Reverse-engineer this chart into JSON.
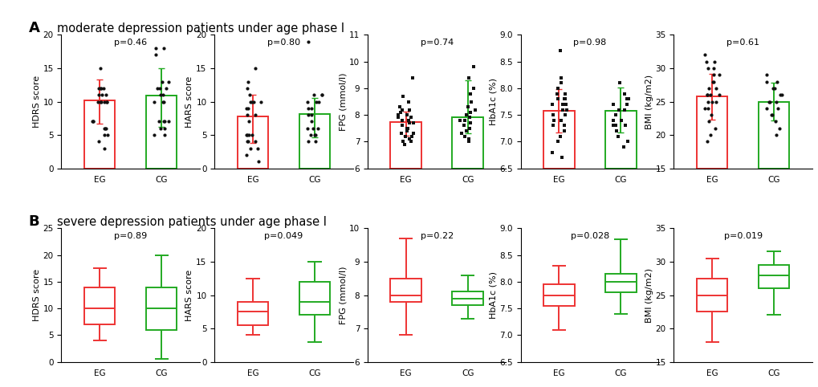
{
  "title_A": "moderate depression patients under age phase I",
  "title_B": "severe depression patients under age phase I",
  "label_A": "A",
  "label_B": "B",
  "groups": [
    "EG",
    "CG"
  ],
  "eg_color": "#EE3333",
  "cg_color": "#22AA22",
  "dot_color": "#111111",
  "row_A": {
    "panels": [
      {
        "ylabel": "HDRS score",
        "pval": "p=0.46",
        "ylim": [
          0,
          20
        ],
        "yticks": [
          0,
          5,
          10,
          15,
          20
        ],
        "marker": "o",
        "EG": {
          "mean": 10.2,
          "sd_low": 6.7,
          "sd_high": 13.3,
          "dots": [
            15,
            12,
            12,
            12,
            12,
            11,
            11,
            11,
            10,
            10,
            10,
            10,
            10,
            10,
            7,
            7,
            7,
            6,
            6,
            6,
            5,
            5,
            4,
            3
          ]
        },
        "CG": {
          "mean": 10.9,
          "sd_low": 6.2,
          "sd_high": 15.0,
          "dots": [
            18,
            18,
            17,
            13,
            13,
            12,
            12,
            12,
            11,
            11,
            10,
            10,
            10,
            7,
            7,
            7,
            7,
            6,
            6,
            5,
            5
          ]
        }
      },
      {
        "ylabel": "HARS score",
        "pval": "p=0.80",
        "ylim": [
          0,
          20
        ],
        "yticks": [
          0,
          5,
          10,
          15,
          20
        ],
        "marker": "o",
        "EG": {
          "mean": 7.8,
          "sd_low": 3.8,
          "sd_high": 11.0,
          "dots": [
            15,
            13,
            12,
            11,
            10,
            10,
            10,
            10,
            9,
            9,
            8,
            8,
            7,
            5,
            5,
            5,
            5,
            4,
            4,
            4,
            3,
            3,
            2,
            1
          ]
        },
        "CG": {
          "mean": 8.1,
          "sd_low": 4.6,
          "sd_high": 10.5,
          "dots": [
            19,
            11,
            11,
            11,
            10,
            10,
            10,
            9,
            9,
            8,
            8,
            7,
            6,
            6,
            6,
            5,
            5,
            5,
            4,
            4
          ]
        }
      },
      {
        "ylabel": "FPG (mmol/l)",
        "pval": "p=0.74",
        "ylim": [
          6,
          11
        ],
        "yticks": [
          6,
          7,
          8,
          9,
          10,
          11
        ],
        "marker": "s",
        "EG": {
          "mean": 7.72,
          "sd_low": 7.22,
          "sd_high": 8.12,
          "dots": [
            9.4,
            8.7,
            8.5,
            8.3,
            8.2,
            8.2,
            8.1,
            8.0,
            8.0,
            7.9,
            7.9,
            7.8,
            7.8,
            7.7,
            7.7,
            7.6,
            7.5,
            7.5,
            7.4,
            7.3,
            7.3,
            7.2,
            7.2,
            7.1,
            7.0,
            7.0,
            6.9
          ]
        },
        "CG": {
          "mean": 7.9,
          "sd_low": 7.3,
          "sd_high": 9.3,
          "dots": [
            9.8,
            9.4,
            9.0,
            8.8,
            8.5,
            8.3,
            8.2,
            8.1,
            8.0,
            7.9,
            7.8,
            7.8,
            7.7,
            7.6,
            7.5,
            7.4,
            7.3,
            7.2,
            7.1,
            7.0
          ]
        }
      },
      {
        "ylabel": "HbA1c (%)",
        "pval": "p=0.98",
        "ylim": [
          6.5,
          9.0
        ],
        "yticks": [
          6.5,
          7.0,
          7.5,
          8.0,
          8.5,
          9.0
        ],
        "marker": "s",
        "EG": {
          "mean": 7.57,
          "sd_low": 7.17,
          "sd_high": 7.98,
          "dots": [
            8.7,
            8.2,
            8.1,
            8.0,
            7.9,
            7.9,
            7.8,
            7.8,
            7.8,
            7.7,
            7.7,
            7.7,
            7.6,
            7.6,
            7.5,
            7.5,
            7.4,
            7.4,
            7.3,
            7.3,
            7.2,
            7.1,
            7.0,
            6.8,
            6.7
          ]
        },
        "CG": {
          "mean": 7.57,
          "sd_low": 7.17,
          "sd_high": 8.02,
          "dots": [
            8.1,
            7.9,
            7.8,
            7.8,
            7.7,
            7.7,
            7.6,
            7.6,
            7.5,
            7.4,
            7.4,
            7.3,
            7.3,
            7.3,
            7.2,
            7.1,
            7.0,
            6.9
          ]
        }
      },
      {
        "ylabel": "BMI (kg/m2)",
        "pval": "p=0.61",
        "ylim": [
          15,
          35
        ],
        "yticks": [
          15,
          20,
          25,
          30,
          35
        ],
        "marker": "o",
        "EG": {
          "mean": 25.8,
          "sd_low": 22.3,
          "sd_high": 29.1,
          "dots": [
            32,
            31,
            31,
            30,
            30,
            29,
            29,
            28,
            28,
            27,
            27,
            26,
            26,
            26,
            26,
            25,
            25,
            25,
            24,
            24,
            23,
            22,
            21,
            20,
            19
          ]
        },
        "CG": {
          "mean": 25.0,
          "sd_low": 22.2,
          "sd_high": 27.8,
          "dots": [
            29,
            28,
            28,
            27,
            27,
            26,
            26,
            25,
            25,
            25,
            24,
            24,
            23,
            23,
            22,
            21,
            20
          ]
        }
      }
    ]
  },
  "row_B": {
    "panels": [
      {
        "ylabel": "HDRS score",
        "pval": "p=0.89",
        "ylim": [
          0,
          25
        ],
        "yticks": [
          0,
          5,
          10,
          15,
          20,
          25
        ],
        "EG": {
          "q1": 7.0,
          "q2": 10.0,
          "q3": 14.0,
          "whislo": 4.0,
          "whishi": 17.5
        },
        "CG": {
          "q1": 6.0,
          "q2": 10.0,
          "q3": 14.0,
          "whislo": 0.5,
          "whishi": 20.0
        }
      },
      {
        "ylabel": "HARS score",
        "pval": "p=0.049",
        "ylim": [
          0,
          20
        ],
        "yticks": [
          0,
          5,
          10,
          15,
          20
        ],
        "EG": {
          "q1": 5.5,
          "q2": 7.5,
          "q3": 9.0,
          "whislo": 4.0,
          "whishi": 12.5
        },
        "CG": {
          "q1": 7.0,
          "q2": 9.0,
          "q3": 12.0,
          "whislo": 3.0,
          "whishi": 15.0
        }
      },
      {
        "ylabel": "FPG (mmol/l)",
        "pval": "p=0.22",
        "ylim": [
          6,
          10
        ],
        "yticks": [
          6,
          7,
          8,
          9,
          10
        ],
        "EG": {
          "q1": 7.8,
          "q2": 8.0,
          "q3": 8.5,
          "whislo": 6.8,
          "whishi": 9.7
        },
        "CG": {
          "q1": 7.7,
          "q2": 7.9,
          "q3": 8.1,
          "whislo": 7.3,
          "whishi": 8.6
        }
      },
      {
        "ylabel": "HbA1c (%)",
        "pval": "p=0.028",
        "ylim": [
          6.5,
          9.0
        ],
        "yticks": [
          6.5,
          7.0,
          7.5,
          8.0,
          8.5,
          9.0
        ],
        "EG": {
          "q1": 7.55,
          "q2": 7.75,
          "q3": 7.95,
          "whislo": 7.1,
          "whishi": 8.3
        },
        "CG": {
          "q1": 7.8,
          "q2": 8.0,
          "q3": 8.15,
          "whislo": 7.4,
          "whishi": 8.8
        }
      },
      {
        "ylabel": "BMI (kg/m2)",
        "pval": "p=0.019",
        "ylim": [
          15,
          35
        ],
        "yticks": [
          15,
          20,
          25,
          30,
          35
        ],
        "EG": {
          "q1": 22.5,
          "q2": 25.0,
          "q3": 27.5,
          "whislo": 18.0,
          "whishi": 30.5
        },
        "CG": {
          "q1": 26.0,
          "q2": 28.0,
          "q3": 29.5,
          "whislo": 22.0,
          "whishi": 31.5
        }
      }
    ]
  },
  "font_size_title": 10.5,
  "font_size_label": 8.0,
  "font_size_tick": 7.5,
  "font_size_pval": 8.0,
  "font_size_AB": 13,
  "bar_width": 0.5,
  "box_width": 0.5
}
